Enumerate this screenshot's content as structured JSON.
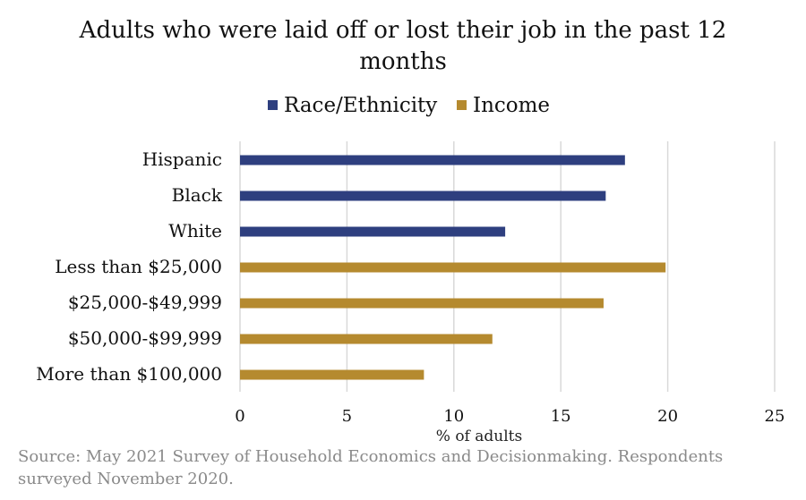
{
  "chart_data": {
    "type": "bar",
    "orientation": "horizontal",
    "title": "Adults who were laid off or lost their job in the past 12 months",
    "title_lines": [
      "Adults who were laid off or lost their job in the past 12",
      "months"
    ],
    "xlabel": "% of adults",
    "ylabel": "",
    "xlim": [
      0,
      25
    ],
    "xticks": [
      0,
      5,
      10,
      15,
      20,
      25
    ],
    "grid": "vertical",
    "legend_position": "top",
    "categories": [
      "Hispanic",
      "Black",
      "White",
      "Less than $25,000",
      "$25,000-$49,999",
      "$50,000-$99,999",
      "More than $100,000"
    ],
    "series": [
      {
        "name": "Race/Ethnicity",
        "color": "#2e3f7f",
        "values": [
          18.0,
          17.1,
          12.4,
          null,
          null,
          null,
          null
        ]
      },
      {
        "name": "Income",
        "color": "#b58a2f",
        "values": [
          null,
          null,
          null,
          19.9,
          17.0,
          11.8,
          8.6
        ]
      }
    ],
    "source_lines": [
      "Source: May 2021 Survey of Household Economics and Decisionmaking. Respondents",
      "surveyed November 2020."
    ]
  }
}
